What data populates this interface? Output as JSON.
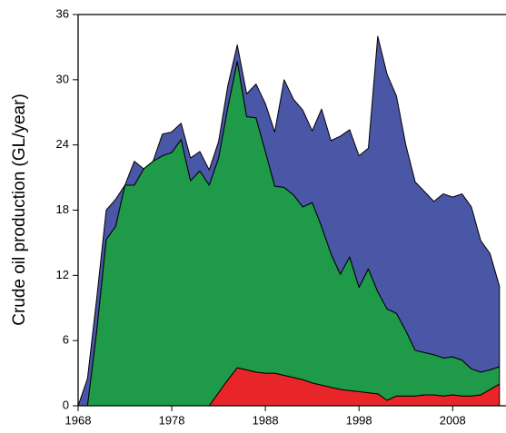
{
  "chart_data": {
    "type": "stacked-area",
    "y_label": "Crude oil production (GL/year)",
    "x": [
      1968,
      1969,
      1970,
      1971,
      1972,
      1973,
      1974,
      1975,
      1976,
      1977,
      1978,
      1979,
      1980,
      1981,
      1982,
      1983,
      1984,
      1985,
      1986,
      1987,
      1988,
      1989,
      1990,
      1991,
      1992,
      1993,
      1994,
      1995,
      1996,
      1997,
      1998,
      1999,
      2000,
      2001,
      2002,
      2003,
      2004,
      2005,
      2006,
      2007,
      2008,
      2009,
      2010,
      2011,
      2012,
      2013
    ],
    "series": [
      {
        "color": "#e8262a",
        "values": [
          0,
          0,
          0,
          0,
          0,
          0,
          0,
          0,
          0,
          0,
          0,
          0,
          0,
          0,
          0,
          1.2,
          2.4,
          3.5,
          3.3,
          3.1,
          3.0,
          3.0,
          2.8,
          2.6,
          2.4,
          2.1,
          1.9,
          1.7,
          1.5,
          1.4,
          1.3,
          1.2,
          1.1,
          0.5,
          0.9,
          0.9,
          0.9,
          1.0,
          1.0,
          0.9,
          1.0,
          0.9,
          0.9,
          1.0,
          1.5,
          2.0
        ]
      },
      {
        "color": "#1e9a48",
        "values": [
          0,
          0,
          7,
          15.3,
          16.5,
          20.3,
          20.3,
          21.8,
          22.5,
          23,
          23.3,
          24.5,
          20.7,
          21.6,
          20.3,
          21.6,
          25.1,
          28.2,
          23.3,
          23.4,
          20.4,
          17.2,
          17.3,
          16.8,
          15.9,
          16.6,
          14.6,
          12.3,
          10.6,
          12.3,
          9.6,
          11.4,
          9.4,
          8.4,
          7.6,
          6.0,
          4.2,
          3.9,
          3.7,
          3.5,
          3.5,
          3.3,
          2.5,
          2.1,
          1.8,
          1.6
        ]
      },
      {
        "color": "#4a56a6",
        "values": [
          0,
          2.5,
          3,
          2.7,
          2.5,
          0,
          2.2,
          0,
          0,
          2,
          1.9,
          1.5,
          2.1,
          1.8,
          1.4,
          1.5,
          2,
          1.5,
          2.1,
          3.1,
          4.4,
          5,
          9.9,
          8.8,
          8.9,
          6.6,
          10.8,
          10.4,
          12.7,
          11.7,
          12.1,
          11.1,
          23.5,
          21.6,
          20,
          17.1,
          15.5,
          14.8,
          14.1,
          15.1,
          14.7,
          15.3,
          14.9,
          12.1,
          10.7,
          7.4
        ]
      }
    ],
    "xlim": [
      1968,
      2013.7
    ],
    "xticks": [
      1968,
      1978,
      1988,
      1998,
      2008
    ],
    "ylim": [
      0,
      36
    ],
    "yticks": [
      0,
      6,
      12,
      18,
      24,
      30,
      36
    ]
  }
}
